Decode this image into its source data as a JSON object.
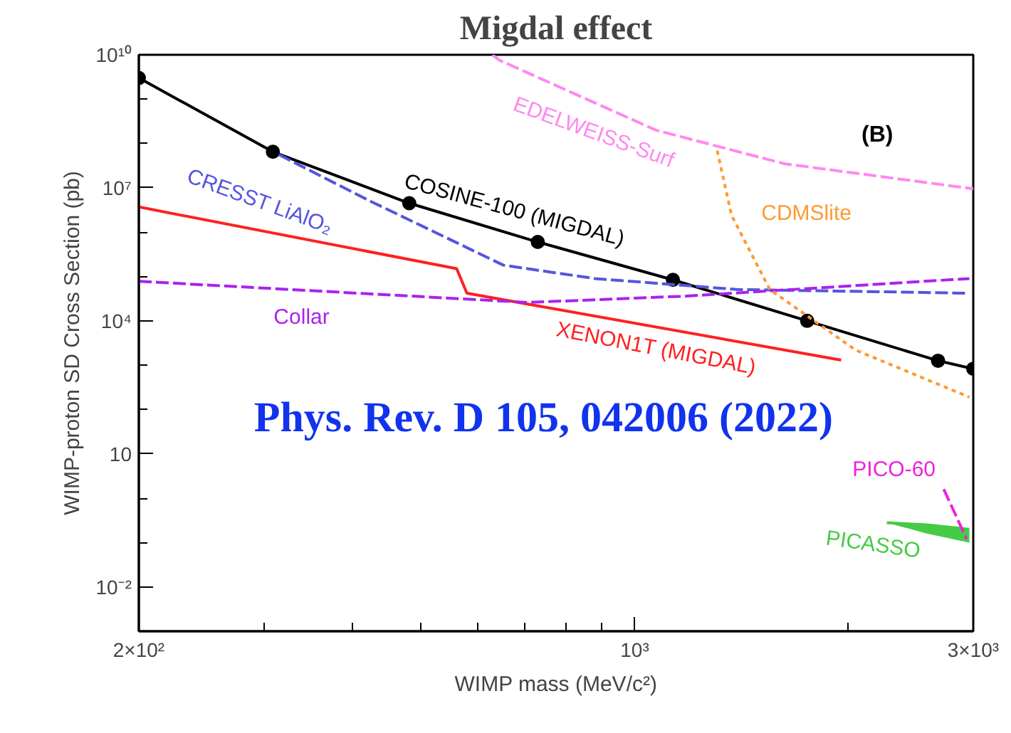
{
  "chart_data": {
    "type": "line",
    "title": "Migdal effect",
    "xlabel": "WIMP mass (MeV/c²)",
    "ylabel": "WIMP-proton SD Cross Section (pb)",
    "log": "xy",
    "grid": false,
    "xlim": [
      200,
      3000
    ],
    "xticks": [
      {
        "value": 200,
        "label": "2×10²"
      },
      {
        "value": 1000,
        "label": "10³"
      },
      {
        "value": 3000,
        "label": "3×10³"
      }
    ],
    "ylim": [
      0.001,
      10000000000
    ],
    "yticks": [
      {
        "value": 0.01,
        "label": "10⁻²"
      },
      10,
      {
        "value": 10000,
        "label": "10⁴"
      },
      {
        "value": 10000000,
        "label": "10⁷"
      },
      {
        "value": 10000000000,
        "label": "10¹⁰"
      }
    ],
    "annotations": [
      "Phys. Rev. D 105, 042006 (2022)",
      "(B)"
    ],
    "series": [
      {
        "name": "COSINE-100 (MIGDAL)",
        "color": "#000000",
        "line_style": "solid",
        "marker": "circle",
        "x": [
          200,
          309,
          481,
          730,
          1132,
          1750,
          2676,
          3000
        ],
        "values": [
          3000000000,
          65000000,
          4500000,
          600000,
          84000,
          10000,
          1260,
          830
        ]
      },
      {
        "name": "CRESST LiAlO₂",
        "color": "#5555dd",
        "line_style": "dashed",
        "marker": "none",
        "x": [
          315,
          425,
          653,
          878,
          1394,
          2962
        ],
        "values": [
          56000000,
          4900000,
          180000,
          90000,
          51000,
          42000
        ]
      },
      {
        "name": "XENON1T (MIGDAL)",
        "color": "#ff2020",
        "line_style": "solid",
        "marker": "none",
        "x": [
          200,
          561,
          580,
          1954
        ],
        "values": [
          3700000,
          150000,
          42000,
          1300
        ]
      },
      {
        "name": "Collar",
        "color": "#aa22ee",
        "line_style": "dashed",
        "marker": "none",
        "x": [
          200,
          707,
          1175,
          2962
        ],
        "values": [
          78000,
          26000,
          36000,
          90000
        ]
      },
      {
        "name": "EDELWEISS-Surf",
        "color": "#ff88ee",
        "line_style": "dashed",
        "marker": "none",
        "x": [
          630,
          644,
          1071,
          1624,
          3000
        ],
        "values": [
          10000000000,
          7600000000,
          200000000,
          35000000,
          9500000
        ]
      },
      {
        "name": "CDMSlite",
        "color": "#ff9933",
        "line_style": "dotted",
        "marker": "none",
        "x": [
          1307,
          1369,
          1550,
          2047,
          2962
        ],
        "values": [
          69000000,
          2400000,
          51000,
          2200,
          190
        ]
      },
      {
        "name": "PICO-60",
        "color": "#ee22dd",
        "line_style": "dashed",
        "marker": "none",
        "x": [
          2726,
          2936
        ],
        "values": [
          1.6,
          0.12
        ]
      },
      {
        "name": "PICASSO",
        "color": "#44cc44",
        "line_style": "solid",
        "marker": "none",
        "x": [
          2266,
          2580,
          2962
        ],
        "values": [
          0.28,
          0.25,
          0.2
        ],
        "lower": [
          0.28,
          0.16,
          0.1
        ],
        "upper": [
          0.28,
          0.25,
          0.2
        ]
      }
    ]
  }
}
